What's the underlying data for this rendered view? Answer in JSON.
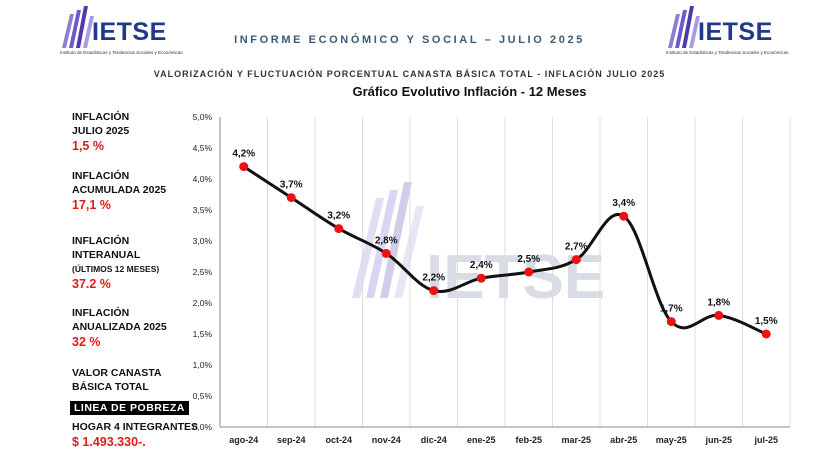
{
  "header": {
    "logo_text": "IETSE",
    "logo_tagline": "Instituto de Estadísticas y Tendencias Sociales y Económicas",
    "report_title": "INFORME ECONÓMICO Y SOCIAL – JULIO 2025",
    "subtitle": "VALORIZACIÓN Y FLUCTUACIÓN PORCENTUAL CANASTA BÁSICA TOTAL - INFLACIÓN JULIO 2025",
    "brand_color": "#1f3a8a"
  },
  "sidebar": {
    "inflacion_mes": {
      "label1": "INFLACIÓN",
      "label2": "JULIO 2025",
      "value": "1,5 %"
    },
    "acumulada": {
      "label1": "INFLACIÓN",
      "label2": "ACUMULADA 2025",
      "value": "17,1 %"
    },
    "interanual": {
      "label1": "INFLACIÓN",
      "label2": "INTERANUAL",
      "label3": "(ÚLTIMOS 12 MESES)",
      "value": "37.2 %"
    },
    "anualizada": {
      "label1": "INFLACIÓN",
      "label2": "ANUALIZADA 2025",
      "value": "32 %"
    },
    "canasta": {
      "label1": "VALOR CANASTA",
      "label2": "BÁSICA TOTAL",
      "badge": "LINEA DE POBREZA",
      "hogar": "HOGAR 4 INTEGRANTES",
      "value": "$ 1.493.330-."
    },
    "value_color": "#e01b1b"
  },
  "chart_data": {
    "type": "line",
    "title": "Gráfico Evolutivo Inflación - 12 Meses",
    "categories": [
      "ago-24",
      "sep-24",
      "oct-24",
      "nov-24",
      "dic-24",
      "ene-25",
      "feb-25",
      "mar-25",
      "abr-25",
      "may-25",
      "jun-25",
      "jul-25"
    ],
    "values": [
      4.2,
      3.7,
      3.2,
      2.8,
      2.2,
      2.4,
      2.5,
      2.7,
      3.4,
      1.7,
      1.8,
      1.5
    ],
    "data_labels": [
      "4,2%",
      "3,7%",
      "3,2%",
      "2,8%",
      "2,2%",
      "2,4%",
      "2,5%",
      "2,7%",
      "3,4%",
      "1,7%",
      "1,8%",
      "1,5%"
    ],
    "y_ticks": [
      "0,0%",
      "0,5%",
      "1,0%",
      "1,5%",
      "2,0%",
      "2,5%",
      "3,0%",
      "3,5%",
      "4,0%",
      "4,5%",
      "5,0%"
    ],
    "ylim": [
      0,
      5
    ],
    "grid": "vertical",
    "line_color": "#111111",
    "marker_color": "#ee1111",
    "watermark": "IETSE"
  }
}
